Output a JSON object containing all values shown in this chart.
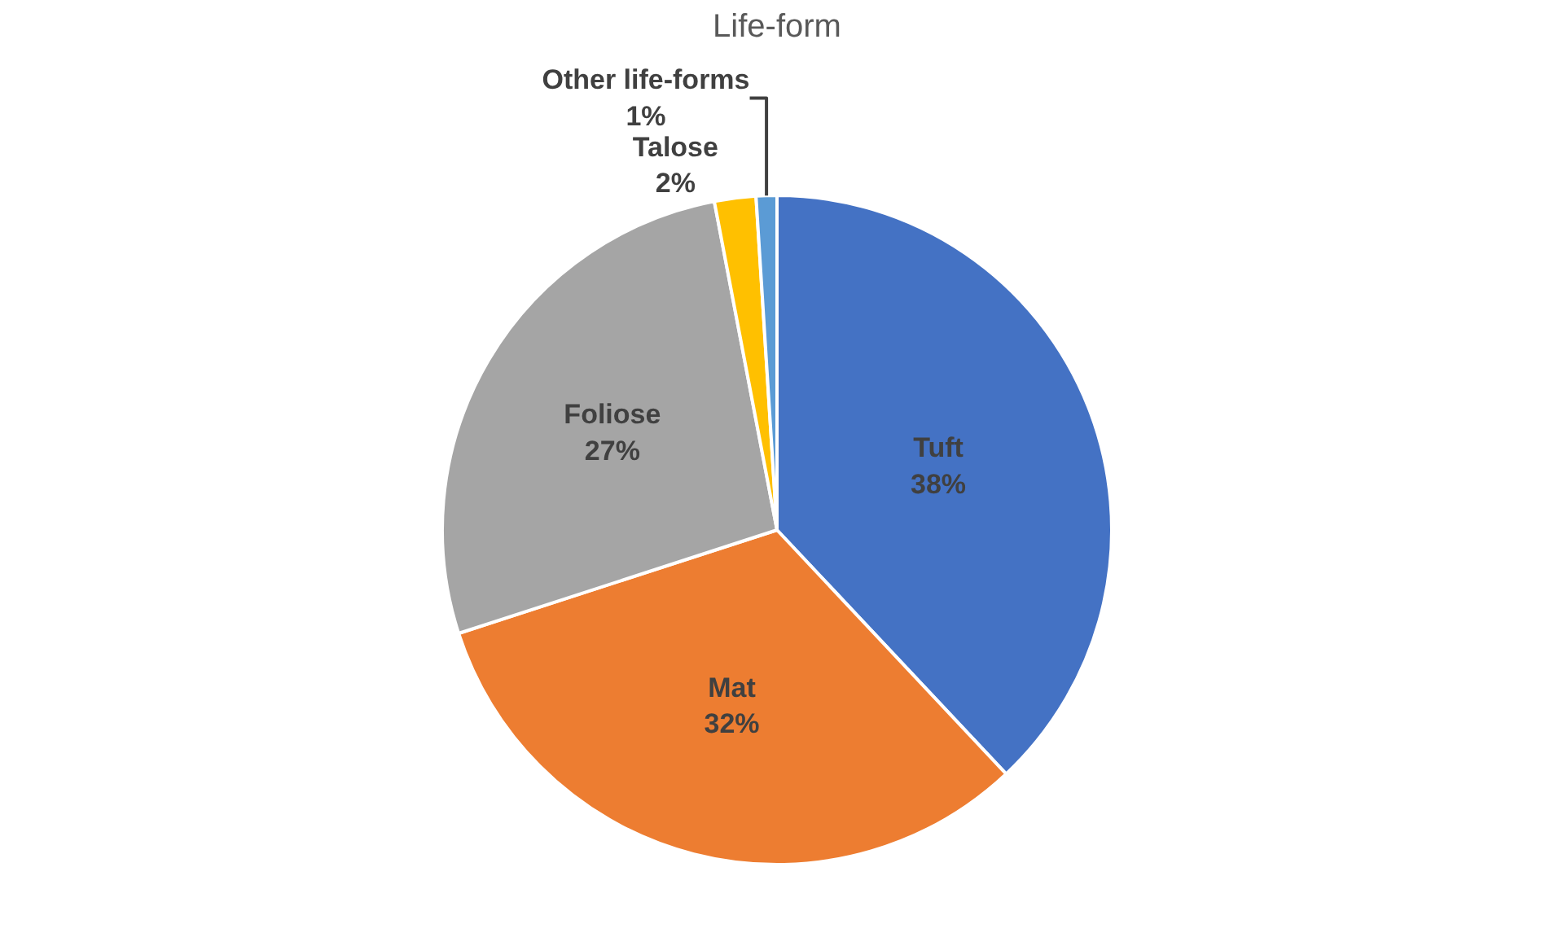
{
  "chart_data": {
    "type": "pie",
    "title": "Life-form",
    "categories": [
      "Tuft",
      "Mat",
      "Foliose",
      "Talose",
      "Other life-forms"
    ],
    "values": [
      38,
      32,
      27,
      2,
      1
    ],
    "value_labels": [
      "38%",
      "32%",
      "27%",
      "2%",
      "1%"
    ],
    "colors": [
      "#4472c4",
      "#ed7d31",
      "#a5a5a5",
      "#ffc000",
      "#5b9bd5"
    ],
    "legend": false
  }
}
